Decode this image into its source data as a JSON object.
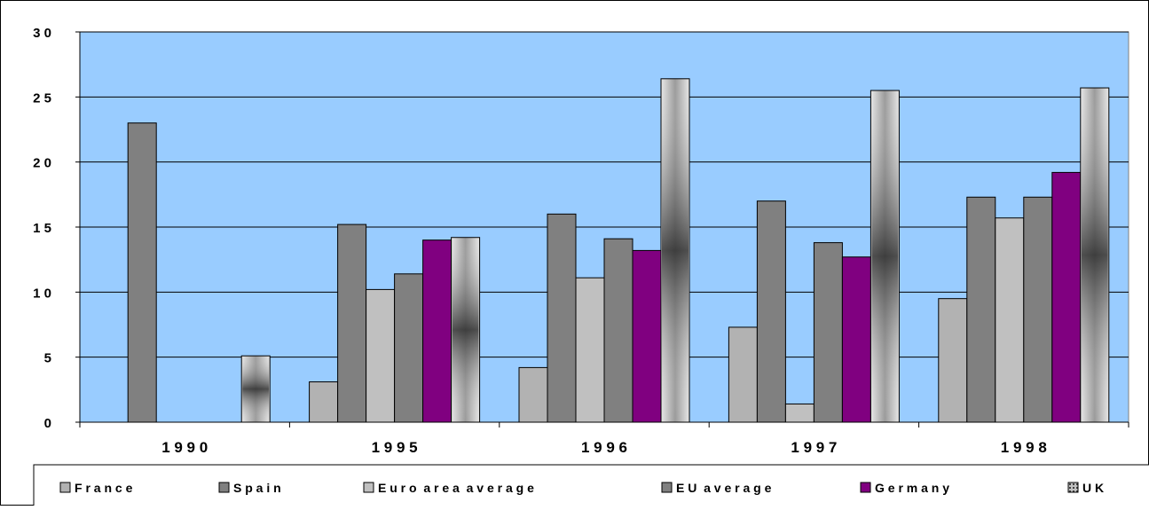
{
  "chart_data": {
    "type": "bar",
    "title": "",
    "xlabel": "",
    "ylabel": "",
    "categories": [
      "1 9 9 0",
      "1 9 9 5",
      "1 9 9 6",
      "1 9 9 7",
      "1 9 9 8"
    ],
    "ylim": [
      0,
      30
    ],
    "yticks": [
      0,
      5,
      10,
      15,
      20,
      25,
      30
    ],
    "ytick_labels": [
      "0",
      "5",
      "1 0",
      "1 5",
      "2 0",
      "2 5",
      "3 0"
    ],
    "grid": true,
    "legend_position": "bottom",
    "plot_background": "#99CCFF",
    "series": [
      {
        "name": "F r a n c e",
        "color": "#B2B2B2",
        "pattern": "solid",
        "values": [
          null,
          3.1,
          4.2,
          7.3,
          9.5
        ]
      },
      {
        "name": "S p a i n",
        "color": "#808080",
        "pattern": "solid",
        "values": [
          23.0,
          15.2,
          16.0,
          17.0,
          17.3
        ]
      },
      {
        "name": "E u r o  a r e a  a v e r a g e",
        "color": "#C0C0C0",
        "pattern": "solid",
        "values": [
          null,
          10.2,
          11.1,
          1.4,
          15.7
        ]
      },
      {
        "name": "E U  a v e r a g e",
        "color": "#808080",
        "pattern": "solid",
        "values": [
          null,
          11.4,
          14.1,
          13.8,
          17.3
        ]
      },
      {
        "name": "G e r m a n y",
        "color": "#800080",
        "pattern": "solid",
        "values": [
          null,
          14.0,
          13.2,
          12.7,
          19.2
        ]
      },
      {
        "name": "U K",
        "color": "#C0C0C0",
        "pattern": "gradient",
        "values": [
          5.1,
          14.2,
          26.4,
          25.5,
          25.7
        ]
      }
    ]
  }
}
